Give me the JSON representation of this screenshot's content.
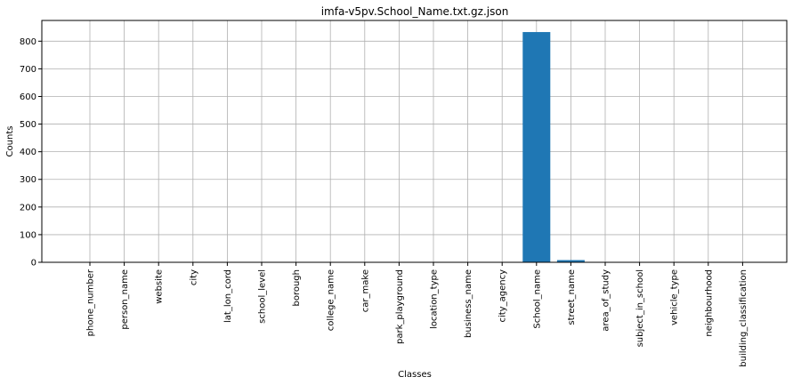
{
  "chart_data": {
    "type": "bar",
    "title": "imfa-v5pv.School_Name.txt.gz.json",
    "xlabel": "Classes",
    "ylabel": "Counts",
    "categories": [
      "phone_number",
      "person_name",
      "website",
      "city",
      "lat_lon_cord",
      "school_level",
      "borough",
      "college_name",
      "car_make",
      "park_playground",
      "location_type",
      "business_name",
      "city_agency",
      "School_name",
      "street_name",
      "area_of_study",
      "subject_in_school",
      "vehicle_type",
      "neighbourhood",
      "building_classification"
    ],
    "values": [
      0,
      0,
      0,
      0,
      0,
      0,
      0,
      0,
      0,
      0,
      0,
      0,
      0,
      833,
      8,
      0,
      0,
      0,
      0,
      0
    ],
    "ylim": [
      0,
      875
    ],
    "yticks": [
      0,
      100,
      200,
      300,
      400,
      500,
      600,
      700,
      800
    ],
    "grid": true,
    "bar_color": "#1f77b4"
  }
}
